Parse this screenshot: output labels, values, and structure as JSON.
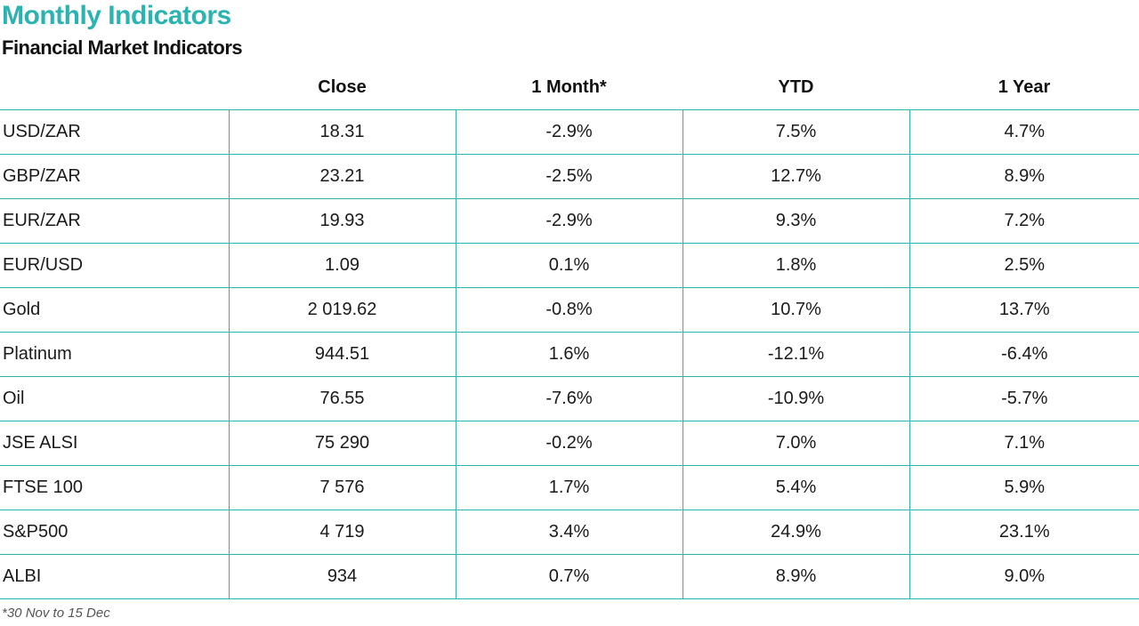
{
  "title": "Monthly Indicators",
  "subtitle": "Financial Market Indicators",
  "table": {
    "columns": [
      "",
      "Close",
      "1 Month*",
      "YTD",
      "1 Year"
    ],
    "rows": [
      [
        "USD/ZAR",
        "18.31",
        "-2.9%",
        "7.5%",
        "4.7%"
      ],
      [
        "GBP/ZAR",
        "23.21",
        "-2.5%",
        "12.7%",
        "8.9%"
      ],
      [
        "EUR/ZAR",
        "19.93",
        "-2.9%",
        "9.3%",
        "7.2%"
      ],
      [
        "EUR/USD",
        "1.09",
        "0.1%",
        "1.8%",
        "2.5%"
      ],
      [
        "Gold",
        "2 019.62",
        "-0.8%",
        "10.7%",
        "13.7%"
      ],
      [
        "Platinum",
        "944.51",
        "1.6%",
        "-12.1%",
        "-6.4%"
      ],
      [
        "Oil",
        "76.55",
        "-7.6%",
        "-10.9%",
        "-5.7%"
      ],
      [
        "JSE ALSI",
        "75 290",
        "-0.2%",
        "7.0%",
        "7.1%"
      ],
      [
        "FTSE 100",
        "7 576",
        "1.7%",
        "5.4%",
        "5.9%"
      ],
      [
        "S&P500",
        "4 719",
        "3.4%",
        "24.9%",
        "23.1%"
      ],
      [
        "ALBI",
        "934",
        "0.7%",
        "8.9%",
        "9.0%"
      ]
    ]
  },
  "footnote": "*30 Nov to 15 Dec",
  "colors": {
    "accent": "#2bb3b1",
    "text": "#1a1a1a"
  }
}
